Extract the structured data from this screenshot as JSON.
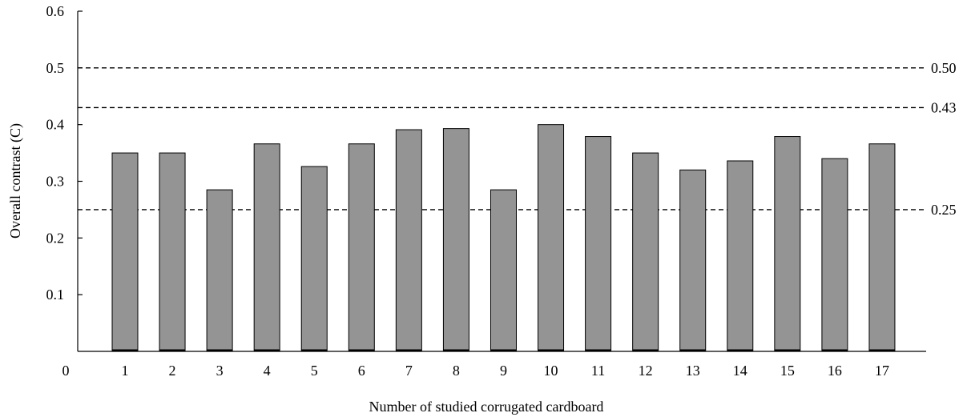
{
  "chart_data": {
    "type": "bar",
    "title": "",
    "xlabel": "Number of studied corrugated cardboard",
    "ylabel": "Overall contrast (C)",
    "origin_label": "0",
    "categories": [
      "1",
      "2",
      "3",
      "4",
      "5",
      "6",
      "7",
      "8",
      "9",
      "10",
      "11",
      "12",
      "13",
      "14",
      "15",
      "16",
      "17"
    ],
    "values": [
      0.35,
      0.35,
      0.285,
      0.366,
      0.326,
      0.366,
      0.391,
      0.393,
      0.285,
      0.4,
      0.379,
      0.35,
      0.32,
      0.336,
      0.379,
      0.34,
      0.366
    ],
    "ylim": [
      0,
      0.6
    ],
    "yticks": [
      0.1,
      0.2,
      0.3,
      0.4,
      0.5,
      0.6
    ],
    "ytick_labels": [
      "0.1",
      "0.2",
      "0.3",
      "0.4",
      "0.5",
      "0.6"
    ],
    "reference_lines": [
      {
        "value": 0.5,
        "label": "0.50"
      },
      {
        "value": 0.43,
        "label": "0.43"
      },
      {
        "value": 0.25,
        "label": "0.25"
      }
    ],
    "grid": false,
    "legend": "none",
    "colors": {
      "bar": "#949494",
      "bar_edge": "#000000",
      "axis": "#000000",
      "ref_line": "#000000"
    }
  }
}
